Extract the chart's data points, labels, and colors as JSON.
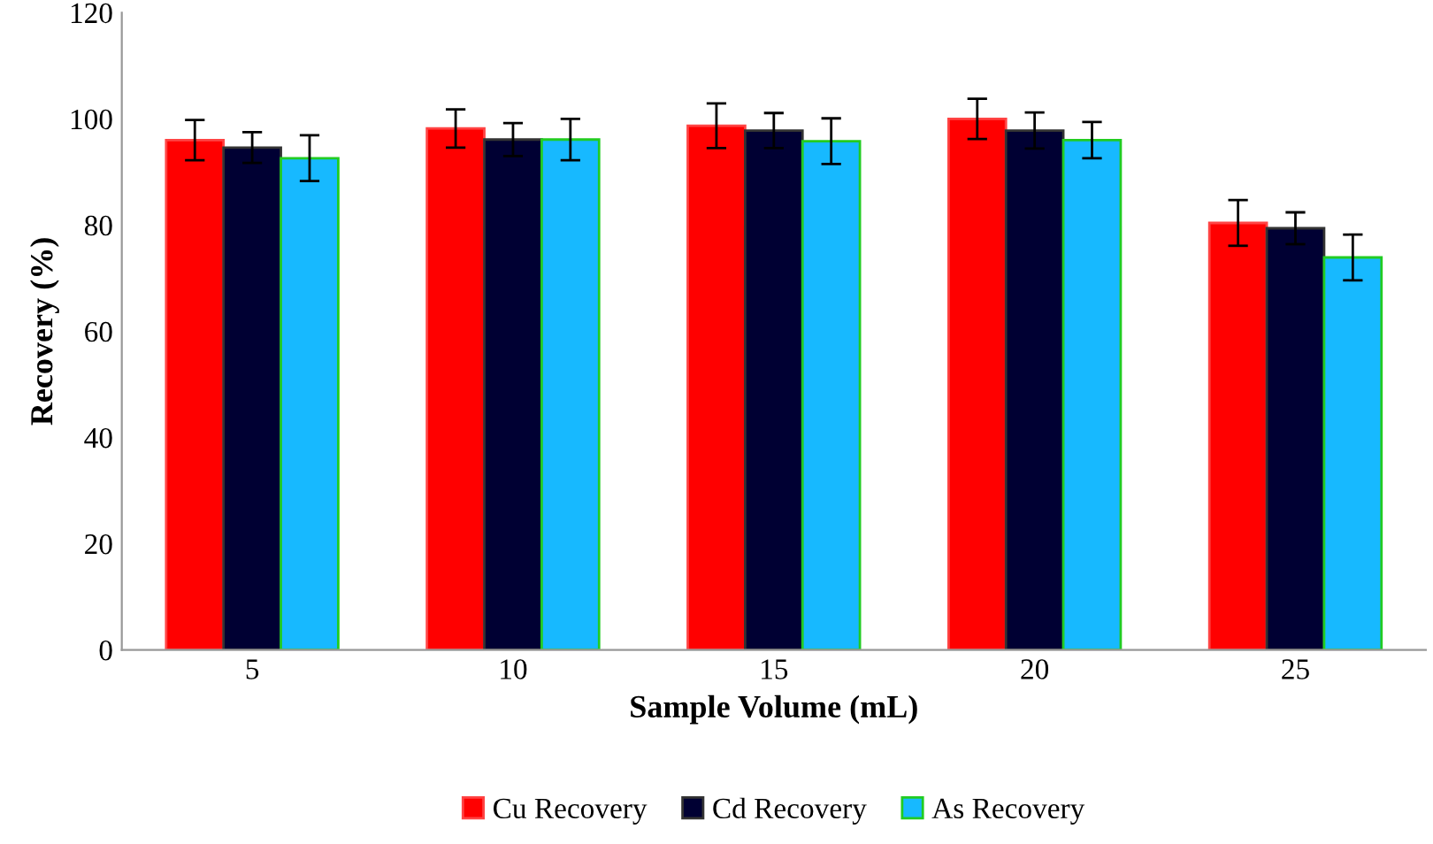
{
  "chart_data": {
    "type": "bar",
    "xlabel": "Sample Volume (mL)",
    "ylabel": "Recovery (%)",
    "categories": [
      "5",
      "10",
      "15",
      "20",
      "25"
    ],
    "series": [
      {
        "name": "Cu Recovery",
        "color": "#ff0000",
        "values": [
          96.0,
          98.2,
          98.7,
          100.0,
          80.4
        ],
        "errors": [
          3.8,
          3.6,
          4.2,
          3.8,
          4.3
        ]
      },
      {
        "name": "Cd Recovery",
        "color": "#000033",
        "values": [
          94.6,
          96.1,
          97.8,
          97.8,
          79.4
        ],
        "errors": [
          2.9,
          3.1,
          3.3,
          3.4,
          3.0
        ]
      },
      {
        "name": "As Recovery",
        "color": "#17b9ff",
        "values": [
          92.6,
          96.1,
          95.8,
          96.0,
          73.9
        ],
        "errors": [
          4.3,
          3.9,
          4.3,
          3.4,
          4.3
        ]
      }
    ],
    "ylim": [
      0,
      120
    ],
    "yticks": [
      0,
      20,
      40,
      60,
      80,
      100,
      120
    ],
    "grid": false,
    "legend": "bottom"
  }
}
